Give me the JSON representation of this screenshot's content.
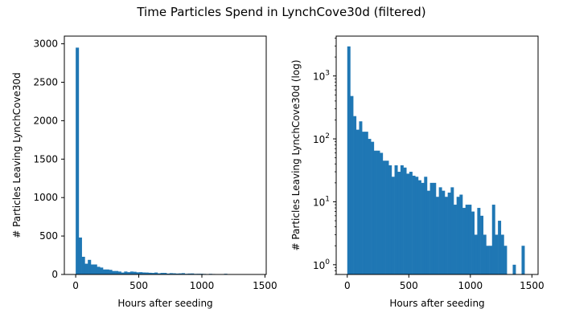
{
  "title": "Time Particles Spend in LynchCove30d (filtered)",
  "chart_data": [
    {
      "type": "bar",
      "subtype": "histogram",
      "scale": "linear",
      "xlabel": "Hours after seeding",
      "ylabel": "# Particles Leaving LynchCove30d",
      "xlim": [
        -90,
        1510
      ],
      "ylim": [
        0,
        3100
      ],
      "xticks": [
        "0",
        "500",
        "1000",
        "1500"
      ],
      "yticks": [
        "0",
        "500",
        "1000",
        "1500",
        "2000",
        "2500",
        "3000"
      ],
      "grid": false,
      "bar_color": "#1f77b4",
      "bin_edges": [
        0,
        24,
        48,
        72,
        96,
        120,
        144,
        168,
        192,
        216,
        240,
        264,
        288,
        312,
        336,
        360,
        384,
        408,
        432,
        456,
        480,
        504,
        528,
        552,
        576,
        600,
        624,
        648,
        672,
        696,
        720,
        744,
        768,
        792,
        816,
        840,
        864,
        888,
        912,
        936,
        960,
        984,
        1008,
        1032,
        1056,
        1080,
        1104,
        1128,
        1152,
        1176,
        1200,
        1224,
        1248,
        1272,
        1296,
        1320,
        1344,
        1368,
        1392,
        1416,
        1440
      ],
      "values": [
        2950,
        480,
        230,
        140,
        190,
        130,
        130,
        100,
        90,
        65,
        65,
        60,
        45,
        45,
        38,
        25,
        38,
        30,
        38,
        35,
        28,
        30,
        26,
        25,
        22,
        20,
        25,
        15,
        20,
        20,
        12,
        17,
        15,
        12,
        14,
        17,
        9,
        12,
        13,
        8,
        9,
        9,
        7,
        3,
        8,
        6,
        3,
        2,
        2,
        9,
        3,
        5,
        3,
        2,
        0,
        0,
        1,
        0,
        0,
        2
      ]
    },
    {
      "type": "bar",
      "subtype": "histogram",
      "scale": "log",
      "xlabel": "Hours after seeding",
      "ylabel": "# Particles Leaving LynchCove30d (log)",
      "xlim": [
        -90,
        1550
      ],
      "ylim": [
        0.7,
        4300
      ],
      "xticks": [
        "0",
        "500",
        "1000",
        "1500"
      ],
      "yticks": [
        {
          "base": "10",
          "exp": "0",
          "value": 1
        },
        {
          "base": "10",
          "exp": "1",
          "value": 10
        },
        {
          "base": "10",
          "exp": "2",
          "value": 100
        },
        {
          "base": "10",
          "exp": "3",
          "value": 1000
        }
      ],
      "grid": false,
      "bar_color": "#1f77b4",
      "bin_edges": [
        0,
        24,
        48,
        72,
        96,
        120,
        144,
        168,
        192,
        216,
        240,
        264,
        288,
        312,
        336,
        360,
        384,
        408,
        432,
        456,
        480,
        504,
        528,
        552,
        576,
        600,
        624,
        648,
        672,
        696,
        720,
        744,
        768,
        792,
        816,
        840,
        864,
        888,
        912,
        936,
        960,
        984,
        1008,
        1032,
        1056,
        1080,
        1104,
        1128,
        1152,
        1176,
        1200,
        1224,
        1248,
        1272,
        1296,
        1320,
        1344,
        1368,
        1392,
        1416,
        1440
      ],
      "values": [
        2950,
        480,
        230,
        140,
        190,
        130,
        130,
        100,
        90,
        65,
        65,
        60,
        45,
        45,
        38,
        25,
        38,
        30,
        38,
        35,
        28,
        30,
        26,
        25,
        22,
        20,
        25,
        15,
        20,
        20,
        12,
        17,
        15,
        12,
        14,
        17,
        9,
        12,
        13,
        8,
        9,
        9,
        7,
        3,
        8,
        6,
        3,
        2,
        2,
        9,
        3,
        5,
        3,
        2,
        0,
        0,
        1,
        0,
        0,
        2
      ]
    }
  ]
}
